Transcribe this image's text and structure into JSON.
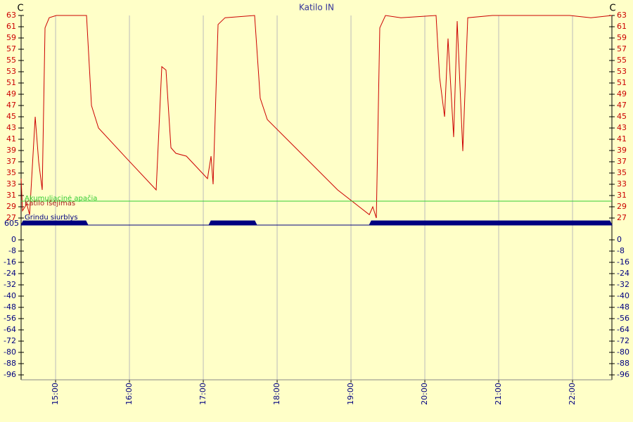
{
  "chart_data": {
    "type": "line",
    "title": "Katilo IN",
    "unit_label": "C",
    "xlim": [
      14.533,
      22.533
    ],
    "xticks": [
      {
        "value": 15,
        "label": "15:00"
      },
      {
        "value": 16,
        "label": "16:00"
      },
      {
        "value": 17,
        "label": "17:00"
      },
      {
        "value": 18,
        "label": "18:00"
      },
      {
        "value": 19,
        "label": "19:00"
      },
      {
        "value": 20,
        "label": "20:00"
      },
      {
        "value": 21,
        "label": "21:00"
      },
      {
        "value": 22,
        "label": "22:00"
      }
    ],
    "ylim": [
      27,
      63
    ],
    "yticks": [
      27,
      29,
      31,
      33,
      35,
      37,
      39,
      41,
      43,
      45,
      47,
      49,
      51,
      53,
      55,
      57,
      59,
      61,
      63
    ],
    "y2lim": [
      -96,
      0
    ],
    "y2ticks": [
      0,
      -8,
      -16,
      -24,
      -32,
      -40,
      -48,
      -56,
      -64,
      -72,
      -80,
      -88,
      -96
    ],
    "pump_axis_label": "605",
    "series": [
      {
        "color": "#cc0000",
        "x": [
          14.533,
          14.552,
          14.61,
          14.648,
          14.724,
          14.771,
          14.819,
          14.857,
          14.914,
          15.01,
          15.419,
          15.486,
          15.581,
          15.962,
          16.362,
          16.438,
          16.495,
          16.562,
          16.629,
          16.771,
          17.057,
          17.105,
          17.133,
          17.2,
          17.295,
          17.695,
          17.771,
          17.867,
          18.248,
          18.819,
          19.248,
          19.295,
          19.343,
          19.39,
          19.467,
          19.676,
          20.152,
          20.2,
          20.267,
          20.314,
          20.39,
          20.438,
          20.514,
          20.581,
          20.914,
          21.962,
          22.248,
          22.533
        ],
        "values": [
          34,
          28.3,
          29.5,
          27.6,
          45,
          37,
          32,
          60.8,
          62.6,
          63,
          63,
          47,
          43,
          37.6,
          32,
          53.9,
          53.3,
          39.5,
          38.5,
          38,
          34,
          38,
          33,
          61.4,
          62.6,
          63,
          48.3,
          44.5,
          39.5,
          32,
          27.6,
          29,
          27,
          60.8,
          63,
          62.6,
          63,
          52,
          45,
          58.9,
          41.4,
          62,
          38.9,
          62.6,
          63,
          63,
          62.6,
          63
        ]
      },
      {
        "name": "Akumuliacinė apačia",
        "color": "#33cc33",
        "x": [
          14.533,
          22.533
        ],
        "values": [
          30,
          30
        ]
      },
      {
        "name": "Katilo išėjimas",
        "color": "#aa2222"
      },
      {
        "name": "Grindu siurblys",
        "color": "#000080",
        "segments": [
          [
            14.533,
            15.438
          ],
          [
            17.076,
            17.724
          ],
          [
            19.248,
            22.533
          ]
        ]
      }
    ]
  }
}
